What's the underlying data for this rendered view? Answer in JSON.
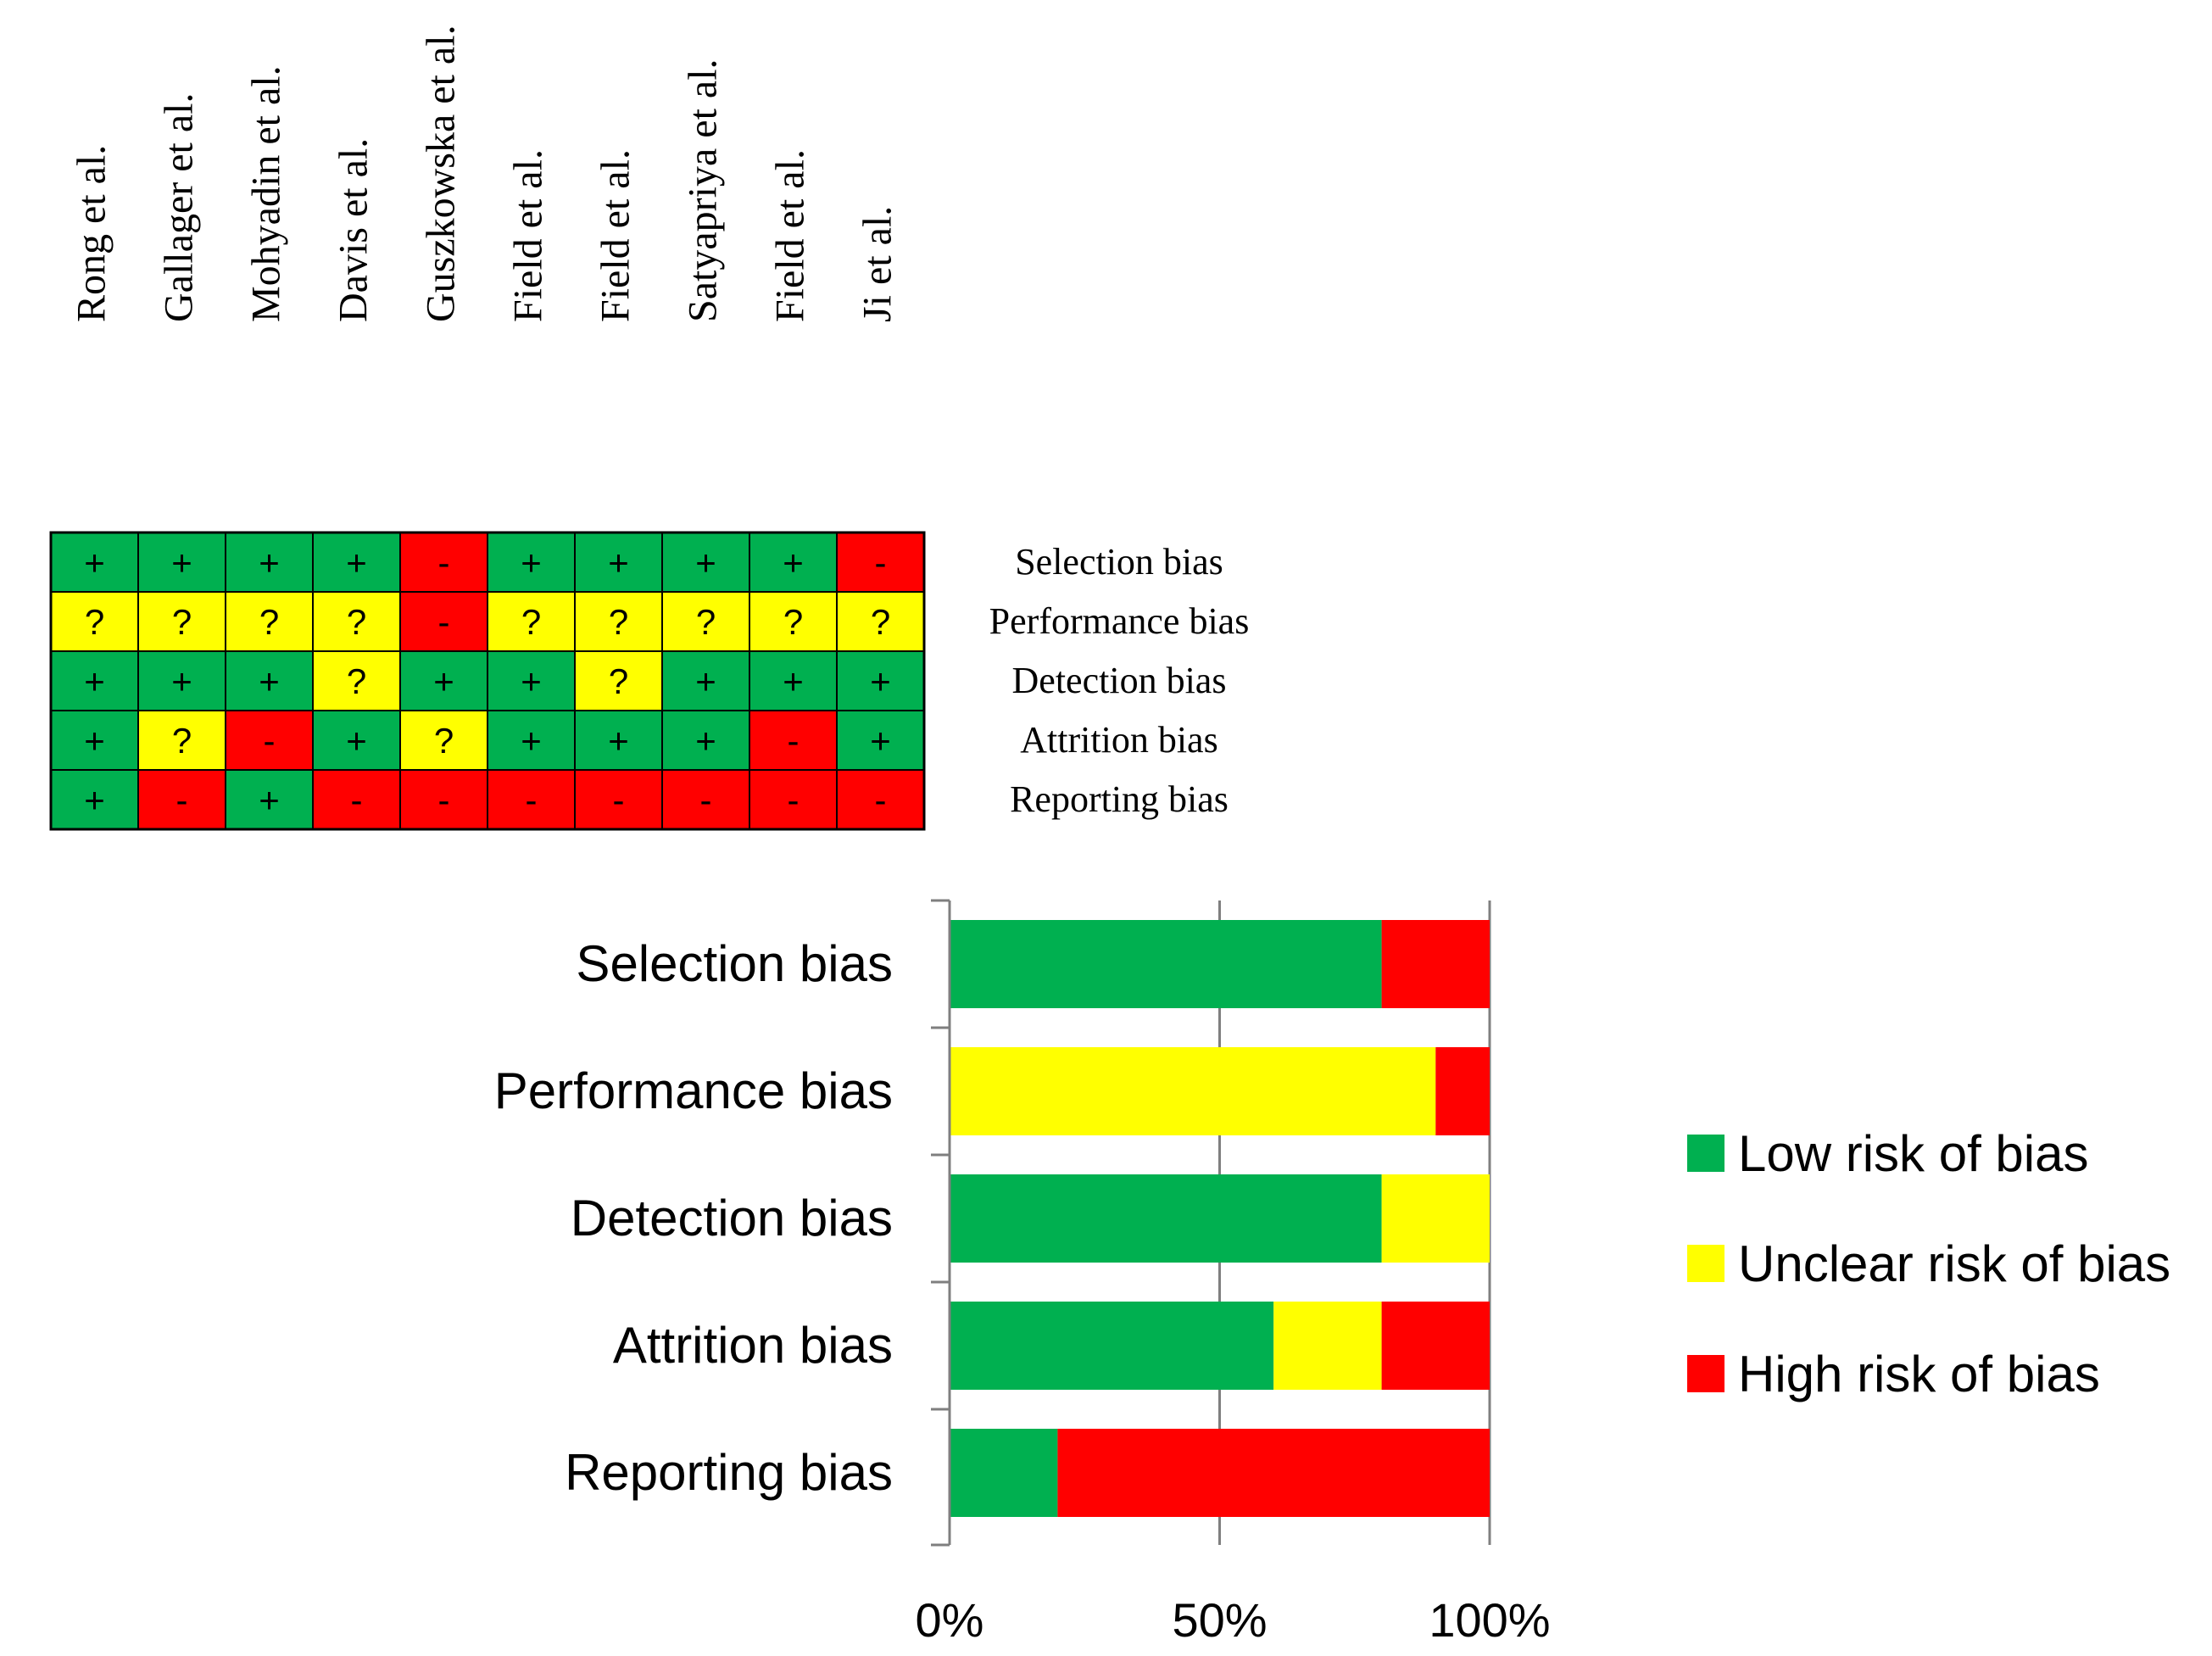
{
  "chart_data": [
    {
      "type": "table",
      "title": "",
      "studies": [
        "Rong et al.",
        "Gallager et al.",
        "Mohyadin et al.",
        "Davis et al.",
        "Guszkowska et al.",
        "Field et al.",
        "Field et al.",
        "Satyapriya et al.",
        "Field et al.",
        "Ji et al."
      ],
      "domains": [
        "Selection bias",
        "Performance bias",
        "Detection bias",
        "Attrition bias",
        "Reporting bias"
      ],
      "judgements": [
        [
          "+",
          "+",
          "+",
          "+",
          "-",
          "+",
          "+",
          "+",
          "+",
          "-"
        ],
        [
          "?",
          "?",
          "?",
          "?",
          "-",
          "?",
          "?",
          "?",
          "?",
          "?"
        ],
        [
          "+",
          "+",
          "+",
          "?",
          "+",
          "+",
          "?",
          "+",
          "+",
          "+"
        ],
        [
          "+",
          "?",
          "-",
          "+",
          "?",
          "+",
          "+",
          "+",
          "-",
          "+"
        ],
        [
          "+",
          "-",
          "+",
          "-",
          "-",
          "-",
          "-",
          "-",
          "-",
          "-"
        ]
      ],
      "symbol_colors": {
        "+": "#00b050",
        "?": "#ffff00",
        "-": "#ff0000"
      }
    },
    {
      "type": "bar",
      "orientation": "horizontal",
      "stacked": true,
      "title": "",
      "categories": [
        "Selection bias",
        "Performance bias",
        "Detection bias",
        "Attrition bias",
        "Reporting bias"
      ],
      "series": [
        {
          "name": "Low risk of bias",
          "color": "#00b050",
          "values": [
            80,
            0,
            80,
            60,
            20
          ]
        },
        {
          "name": "Unclear risk of bias",
          "color": "#ffff00",
          "values": [
            0,
            90,
            20,
            20,
            0
          ]
        },
        {
          "name": "High risk of bias",
          "color": "#ff0000",
          "values": [
            20,
            10,
            0,
            20,
            80
          ]
        }
      ],
      "xlim": [
        0,
        100
      ],
      "xticks": [
        "0%",
        "50%",
        "100%"
      ],
      "xlabel": "",
      "ylabel": "",
      "grid": true,
      "legend": "right"
    }
  ]
}
